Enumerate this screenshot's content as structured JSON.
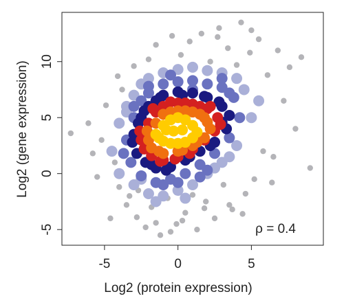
{
  "chart_data": {
    "type": "scatter",
    "x_label": "Log2 (protein expression)",
    "y_label": "Log2 (gene expression)",
    "annotation": "ρ = 0.4",
    "xlim": [
      -7.9,
      9.9
    ],
    "ylim": [
      -6.4,
      14.4
    ],
    "xticks": [
      -5,
      0,
      5
    ],
    "yticks": [
      -5,
      0,
      5,
      10
    ],
    "series": [
      {
        "color": "#b4b4b8",
        "x": [
          -7.3,
          -6.1,
          -5.8,
          -5.5,
          -5.2,
          -4.9,
          -4.6,
          -4.3,
          -4,
          -3.8,
          -3.5,
          -3.2,
          -3,
          -2.7,
          -2.5,
          -2.2,
          -2,
          -1.8,
          -1.5,
          -1.2,
          -1,
          -0.7,
          -0.4,
          -0.1,
          0.2,
          0.5,
          0.8,
          1,
          1.3,
          1.6,
          1.9,
          2.2,
          2.5,
          2.8,
          3.1,
          3.4,
          3.7,
          4,
          4.3,
          4.6,
          4.9,
          5.2,
          5.5,
          5.8,
          6.1,
          6.4,
          6.8,
          7.2,
          7.6,
          8,
          8.4,
          9,
          -2.8,
          -1.5,
          0.3,
          1.8,
          3.5,
          5,
          6.5,
          -4.1,
          -3.3,
          2.7,
          4.4,
          -0.5
        ],
        "y": [
          3.6,
          4.5,
          1.8,
          -0.3,
          3,
          6.1,
          -4,
          1,
          -1.2,
          7.5,
          -2.8,
          5.2,
          9.6,
          -1.5,
          8,
          -4.8,
          10.2,
          -3,
          11.5,
          -5.5,
          9,
          -2.2,
          12.3,
          -4.5,
          10.6,
          -3.5,
          11.8,
          -1.9,
          -5,
          12.5,
          -2.5,
          10,
          -4,
          13,
          -1,
          11.2,
          -3.2,
          9.7,
          13.5,
          -1.8,
          10.8,
          -0.5,
          12,
          2,
          8.8,
          -0.8,
          11,
          6.5,
          9.5,
          4,
          10.4,
          0.5,
          -3.9,
          -4.4,
          -4.2,
          -3.1,
          -2.8,
          12.8,
          1.5,
          8.7,
          -2,
          12.2,
          -3.6,
          -5.2
        ]
      },
      {
        "color": "#aab0d8",
        "x": [
          -4.5,
          -4,
          -3.5,
          -3,
          -2.5,
          -2,
          -1,
          0,
          1,
          2,
          3,
          4,
          4.5,
          5,
          4,
          3,
          2,
          1,
          0,
          -1,
          -2,
          -3,
          -4,
          -3.5,
          -2.5,
          -1.5,
          0.5,
          2.5,
          3.5,
          5.5
        ],
        "y": [
          2,
          4.5,
          6,
          7,
          8,
          8.5,
          9,
          9.3,
          9.5,
          9.2,
          9,
          8.5,
          7.5,
          5,
          2.5,
          1,
          0,
          -1,
          -1.5,
          -2,
          -1.8,
          -1,
          0,
          5.5,
          -0.5,
          -2.5,
          -2.2,
          0.5,
          1.5,
          6.5
        ]
      },
      {
        "color": "#6a72c0",
        "x": [
          -3.5,
          -3,
          -2.5,
          -2,
          -1,
          0,
          1,
          2,
          3,
          3.8,
          4.2,
          3.5,
          2.5,
          1.5,
          0.5,
          -0.5,
          -1.5,
          -2.5,
          -3.2,
          -3.7,
          -2,
          -1,
          0,
          1,
          2,
          3,
          -3,
          -0.5,
          1.5,
          3.5
        ],
        "y": [
          3,
          5,
          6.5,
          7.2,
          8,
          8.2,
          8.3,
          8,
          7.7,
          6.8,
          5,
          3.2,
          1.8,
          0.8,
          0,
          -0.5,
          -0.8,
          -0.2,
          1,
          1.8,
          7.8,
          -1,
          -0.8,
          7.5,
          0.3,
          8.5,
          6,
          8.8,
          -0.3,
          7.2
        ]
      },
      {
        "color": "#1a1a80",
        "x": [
          -3,
          -2.5,
          -2,
          -1.5,
          -1,
          0,
          1,
          2,
          3,
          3.5,
          3.3,
          2.5,
          1.5,
          0.5,
          -0.5,
          -1.5,
          -2.2,
          -2.8,
          -3.1,
          -2.7,
          -1.2,
          0.3,
          1.8,
          2.8,
          -2.3,
          -0.8,
          0.8,
          2.2,
          3,
          -1.8
        ],
        "y": [
          3.5,
          5,
          6,
          6.5,
          7,
          7.3,
          7.2,
          6.8,
          6,
          5.2,
          4,
          2.8,
          2,
          1.2,
          0.6,
          0.5,
          1,
          1.8,
          2.8,
          4.5,
          6.8,
          7,
          6.9,
          6.4,
          5.6,
          0.3,
          1.5,
          2.5,
          4.6,
          0.8
        ]
      },
      {
        "color": "#d42020",
        "x": [
          -2.5,
          -2,
          -1.5,
          -1,
          0,
          1,
          2,
          2.7,
          2.5,
          1.8,
          1,
          0,
          -1,
          -1.8,
          -2.3,
          -0.5,
          0.5,
          1.5,
          -2.6,
          -1.2,
          2.2,
          -0.2,
          -1.7,
          0.8,
          2.9
        ],
        "y": [
          3,
          4.5,
          5.5,
          6,
          6.3,
          6.2,
          5.8,
          5,
          3.8,
          3,
          2.2,
          1.5,
          1.2,
          1.6,
          2.2,
          6.4,
          6.3,
          6,
          3.8,
          1.1,
          6,
          1.3,
          5.8,
          1.8,
          4.4
        ]
      },
      {
        "color": "#f07010",
        "x": [
          -2,
          -1.5,
          -1,
          0,
          1,
          1.8,
          2.2,
          1.8,
          1,
          0,
          -1,
          -1.8,
          -0.5,
          0.5,
          1.5,
          -2.1,
          2,
          -1.3,
          0.3,
          1.3
        ],
        "y": [
          3,
          4.5,
          5.3,
          5.6,
          5.5,
          5,
          4,
          3.2,
          2.5,
          2,
          1.8,
          2.3,
          5.5,
          5.6,
          5.3,
          3.8,
          4.6,
          2,
          2.1,
          2.8
        ]
      },
      {
        "color": "#ffcc00",
        "x": [
          -1.5,
          -1,
          -0.5,
          0,
          0.5,
          1,
          1.3,
          1,
          0.5,
          0,
          -0.5,
          -1,
          -1.3,
          -0.3,
          0.3,
          -0.8
        ],
        "y": [
          3.5,
          4.3,
          4.8,
          5,
          4.8,
          4.3,
          3.7,
          3.2,
          2.8,
          2.7,
          2.7,
          2.9,
          3.2,
          3.8,
          3.9,
          3.9
        ]
      }
    ]
  }
}
